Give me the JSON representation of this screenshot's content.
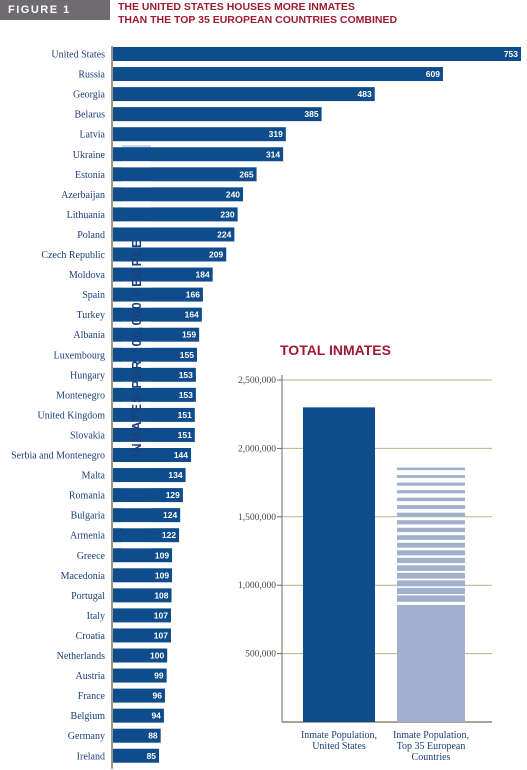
{
  "figure_label": "FIGURE 1",
  "title_line1": "THE UNITED STATES HOUSES MORE INMATES",
  "title_line2": "THAN THE TOP 35 EUROPEAN COUNTRIES COMBINED",
  "colors": {
    "bar": "#0f4c8c",
    "stripe": "#c8d3e8",
    "accent": "#9e1b32",
    "grid": "#b7b38a"
  },
  "chart_data": [
    {
      "type": "bar",
      "orientation": "horizontal",
      "ylabel": "INMATES PER 100,000 PEOPLE",
      "categories": [
        "United States",
        "Russia",
        "Georgia",
        "Belarus",
        "Latvia",
        "Ukraine",
        "Estonia",
        "Azerbaijan",
        "Lithuania",
        "Poland",
        "Czech Republic",
        "Moldova",
        "Spain",
        "Turkey",
        "Albania",
        "Luxembourg",
        "Hungary",
        "Montenegro",
        "United Kingdom",
        "Slovakia",
        "Serbia and Montenegro",
        "Malta",
        "Romania",
        "Bulgaria",
        "Armenia",
        "Greece",
        "Macedonia",
        "Portugal",
        "Italy",
        "Croatia",
        "Netherlands",
        "Austria",
        "France",
        "Belgium",
        "Germany",
        "Ireland"
      ],
      "values": [
        753,
        609,
        483,
        385,
        319,
        314,
        265,
        240,
        230,
        224,
        209,
        184,
        166,
        164,
        159,
        155,
        153,
        153,
        151,
        151,
        144,
        134,
        129,
        124,
        122,
        109,
        109,
        108,
        107,
        107,
        100,
        99,
        96,
        94,
        88,
        85
      ]
    },
    {
      "type": "bar",
      "title": "TOTAL INMATES",
      "categories": [
        "Inmate Population, United States",
        "Inmate Population, Top 35 European Countries"
      ],
      "values": [
        2300000,
        1860000
      ],
      "ylim": [
        0,
        2500000
      ],
      "yticks": [
        "500,000",
        "1,000,000",
        "1,500,000",
        "2,000,000",
        "2,500,000"
      ],
      "grid": true
    }
  ]
}
